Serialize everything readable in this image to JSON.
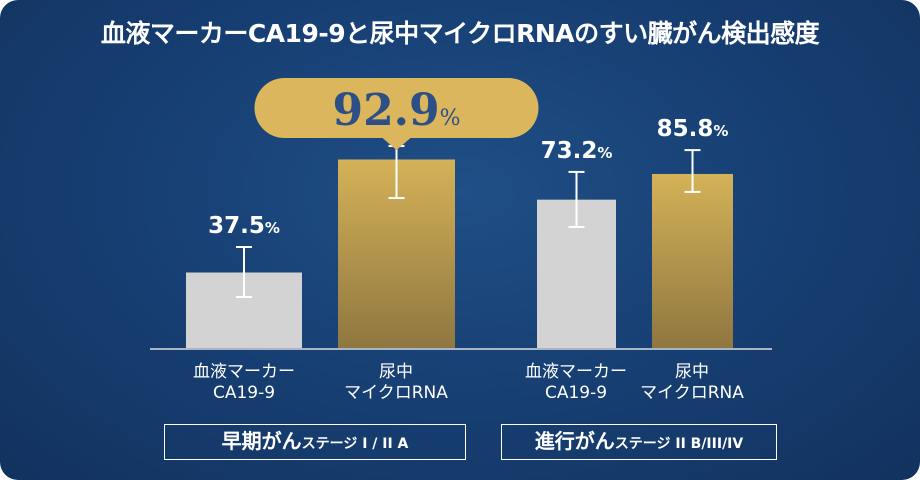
{
  "title": "血液マーカーCA19-9と尿中マイクロRNAのすい臓がん検出感度",
  "colors": {
    "background": "#173f73",
    "gray_bar": "#d3d3d3",
    "gold_bar": "#c9a64f",
    "callout": "#dbb65c",
    "callout_text": "#2c4f86"
  },
  "chart_data": {
    "type": "bar",
    "title": "血液マーカーCA19-9と尿中マイクロRNAのすい臓がん検出感度",
    "unit": "%",
    "ylim": [
      0,
      100
    ],
    "grid": false,
    "groups": [
      {
        "label": "早期がん",
        "sub": "ステージ I / II A",
        "bars": [
          {
            "category": "血液マーカー CA19-9",
            "cat1": "血液マーカー",
            "cat2": "CA19-9",
            "value": 37.5,
            "value_label": "37.5",
            "error": [
              25.5,
              50
            ]
          },
          {
            "category": "尿中 マイクロRNA",
            "cat1": "尿中",
            "cat2": "マイクロRNA",
            "value": 92.9,
            "value_label": "92.9",
            "error": [
              74,
              99.5
            ],
            "highlight": true
          }
        ]
      },
      {
        "label": "進行がん",
        "sub": "ステージ II B/III/IV",
        "bars": [
          {
            "category": "血液マーカー CA19-9",
            "cat1": "血液マーカー",
            "cat2": "CA19-9",
            "value": 73.2,
            "value_label": "73.2",
            "error": [
              59.8,
              86.8
            ]
          },
          {
            "category": "尿中 マイクロRNA",
            "cat1": "尿中",
            "cat2": "マイクロRNA",
            "value": 85.8,
            "value_label": "85.8",
            "error": [
              77,
              97.5
            ]
          }
        ]
      }
    ]
  }
}
